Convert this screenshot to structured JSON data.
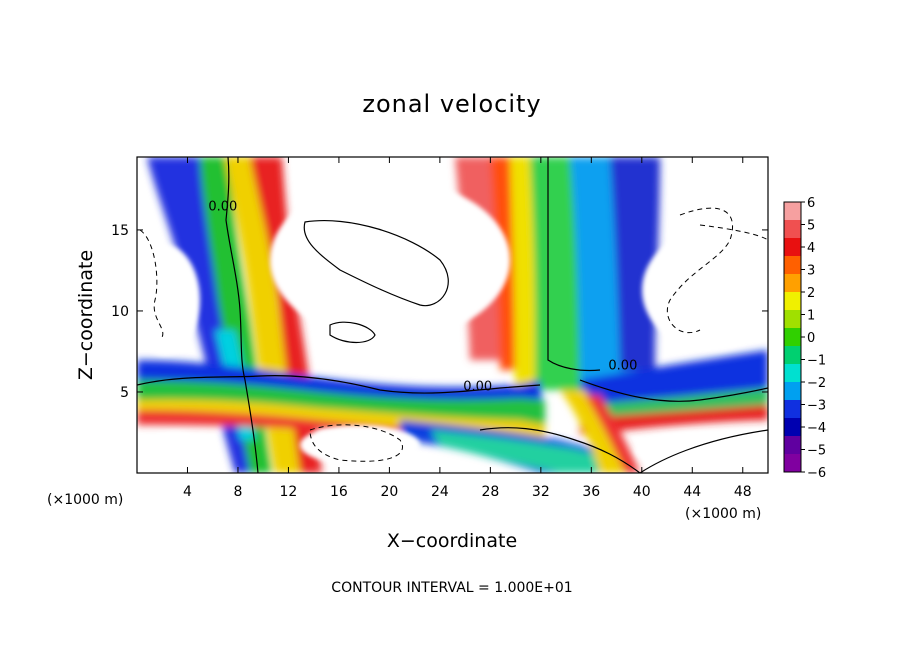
{
  "chart_data": {
    "type": "heatmap",
    "title": "zonal velocity",
    "xlabel": "X−coordinate",
    "ylabel": "Z−coordinate",
    "x_unit_left": "(×1000 m)",
    "x_unit_right": "(×1000 m)",
    "footer": "CONTOUR INTERVAL = 1.000E+01",
    "xlim": [
      0,
      50
    ],
    "ylim": [
      0,
      19.5
    ],
    "x_ticks": [
      4,
      8,
      12,
      16,
      20,
      24,
      28,
      32,
      36,
      40,
      44,
      48
    ],
    "y_ticks": [
      5,
      10,
      15
    ],
    "colorbar": {
      "range": [
        -6,
        6
      ],
      "ticks": [
        "6",
        "5",
        "4",
        "3",
        "2",
        "1",
        "0",
        "−1",
        "−2",
        "−3",
        "−4",
        "−5",
        "−6"
      ],
      "colors": [
        "#f6a0a0",
        "#f05050",
        "#e81010",
        "#ff6000",
        "#ffa000",
        "#f0f000",
        "#a0e000",
        "#30d000",
        "#00d070",
        "#00e0d0",
        "#00a0f0",
        "#1030e0",
        "#0000b0",
        "#6000a0",
        "#8000a0"
      ]
    },
    "contour_labels": [
      {
        "text": "0.00",
        "x": 6.8,
        "y": 16.2
      },
      {
        "text": "0.00",
        "x": 27,
        "y": 5.1
      },
      {
        "text": "0.00",
        "x": 38.5,
        "y": 6.4
      }
    ]
  }
}
